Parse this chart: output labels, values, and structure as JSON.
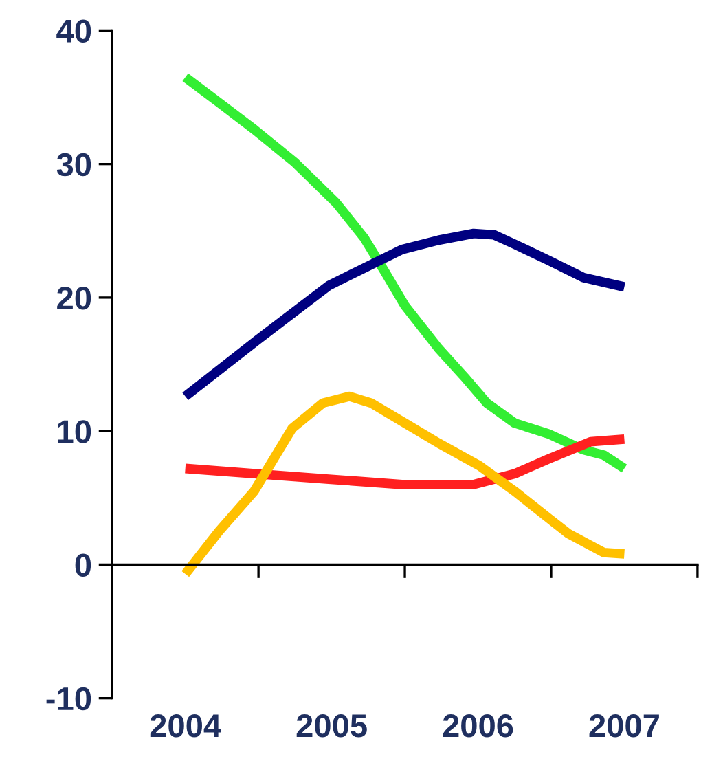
{
  "chart_data": {
    "type": "line",
    "xlim": [
      2003.5,
      2007.5
    ],
    "xticks": [
      2004,
      {
        "value": 2004.5,
        "label": null
      },
      2005,
      {
        "value": 2005.5,
        "label": null
      },
      2006,
      {
        "value": 2006.5,
        "label": null
      },
      2007,
      {
        "value": 2007.5,
        "label": null
      }
    ],
    "ylim": [
      -10,
      40
    ],
    "yticks": [
      -10,
      0,
      10,
      20,
      30,
      40
    ],
    "legend": false,
    "marker": "none",
    "line_style": "solid",
    "series": [
      {
        "color": "#33ee33",
        "x": [
          2004,
          2004.23,
          2004.47,
          2004.75,
          2005.03,
          2005.22,
          2005.36,
          2005.5,
          2005.73,
          2005.92,
          2006.06,
          2006.25,
          2006.48,
          2006.72,
          2006.86,
          2007
        ],
        "values": [
          36.5,
          34.6,
          32.6,
          30.1,
          27.1,
          24.5,
          22.0,
          19.4,
          16.2,
          13.9,
          12.1,
          10.6,
          9.8,
          8.6,
          8.2,
          7.2
        ]
      },
      {
        "color": "#000080",
        "x": [
          2004,
          2004.49,
          2004.98,
          2005.48,
          2005.73,
          2005.97,
          2006.11,
          2006.25,
          2006.48,
          2006.72,
          2007
        ],
        "values": [
          12.6,
          16.8,
          20.9,
          23.6,
          24.3,
          24.8,
          24.7,
          24.0,
          22.8,
          21.5,
          20.8
        ]
      },
      {
        "color": "#ff2020",
        "x": [
          2004,
          2004.49,
          2004.98,
          2005.48,
          2005.97,
          2006.25,
          2006.48,
          2006.77,
          2007
        ],
        "values": [
          7.2,
          6.8,
          6.4,
          6.0,
          6.0,
          6.8,
          7.9,
          9.2,
          9.4
        ]
      },
      {
        "color": "#ffc000",
        "x": [
          2004,
          2004.23,
          2004.47,
          2004.73,
          2004.94,
          2005.12,
          2005.27,
          2005.5,
          2005.73,
          2006.01,
          2006.25,
          2006.48,
          2006.62,
          2006.86,
          2007
        ],
        "values": [
          -0.7,
          2.5,
          5.5,
          10.2,
          12.1,
          12.6,
          12.1,
          10.6,
          9.1,
          7.4,
          5.5,
          3.5,
          2.3,
          0.9,
          0.8
        ]
      }
    ]
  }
}
